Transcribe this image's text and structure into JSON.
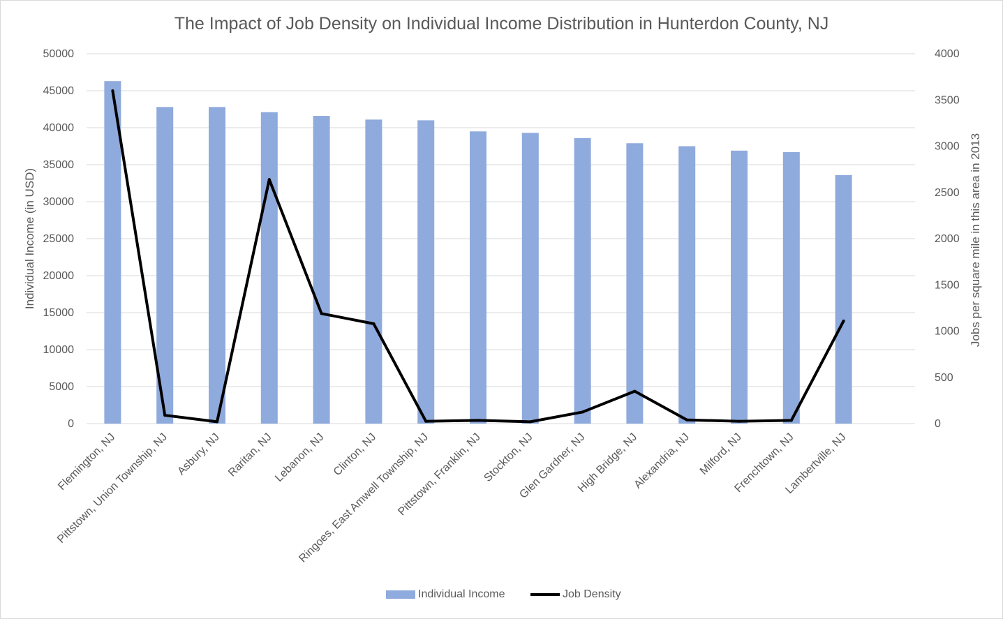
{
  "chart_data": {
    "type": "bar",
    "title": "The Impact of Job Density on Individual Income Distribution in Hunterdon County, NJ",
    "categories": [
      "Flemington, NJ",
      "Pittstown, Union Township, NJ",
      "Asbury, NJ",
      "Raritan, NJ",
      "Lebanon, NJ",
      "Clinton, NJ",
      "Ringoes, East Amwell Township, NJ",
      "Pittstown, Franklin, NJ",
      "Stockton, NJ",
      "Glen Gardner, NJ",
      "High Bridge, NJ",
      "Alexandria, NJ",
      "Milford, NJ",
      "Frenchtown, NJ",
      "Lambertville, NJ"
    ],
    "series": [
      {
        "name": "Individual Income",
        "type": "bar",
        "axis": "left",
        "color": "#8faadc",
        "values": [
          46300,
          42800,
          42800,
          42100,
          41600,
          41100,
          41000,
          39500,
          39300,
          38600,
          37900,
          37500,
          36900,
          36700,
          33600
        ]
      },
      {
        "name": "Job Density",
        "type": "line",
        "axis": "right",
        "color": "#000000",
        "values": [
          3600,
          90,
          20,
          2640,
          1190,
          1080,
          25,
          35,
          20,
          125,
          350,
          40,
          25,
          35,
          1110
        ]
      }
    ],
    "ylabel": "Individual Income (in USD)",
    "y2label": "Jobs per square mile in this area in 2013",
    "ylim": [
      0,
      50000
    ],
    "y2lim": [
      0,
      4000
    ],
    "yticks": [
      "0",
      "5000",
      "10000",
      "15000",
      "20000",
      "25000",
      "30000",
      "35000",
      "40000",
      "45000",
      "50000"
    ],
    "y2ticks": [
      "0",
      "500",
      "1000",
      "1500",
      "2000",
      "2500",
      "3000",
      "3500",
      "4000"
    ],
    "grid": true,
    "legend_position": "bottom"
  }
}
